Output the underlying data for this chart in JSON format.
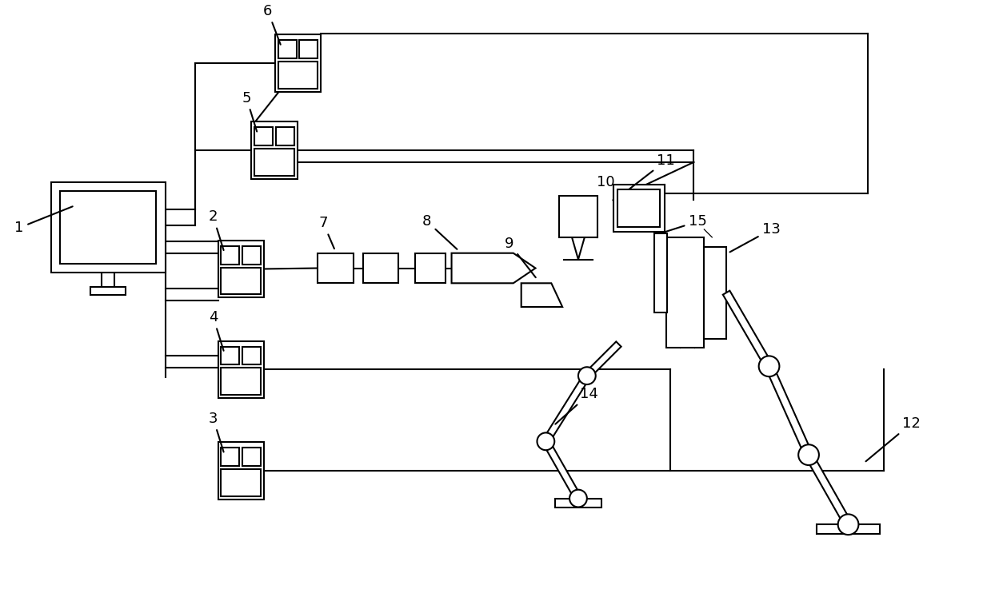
{
  "bg_color": "#ffffff",
  "line_color": "#000000",
  "line_width": 1.5,
  "label_fontsize": 13,
  "label_color": "#000000"
}
